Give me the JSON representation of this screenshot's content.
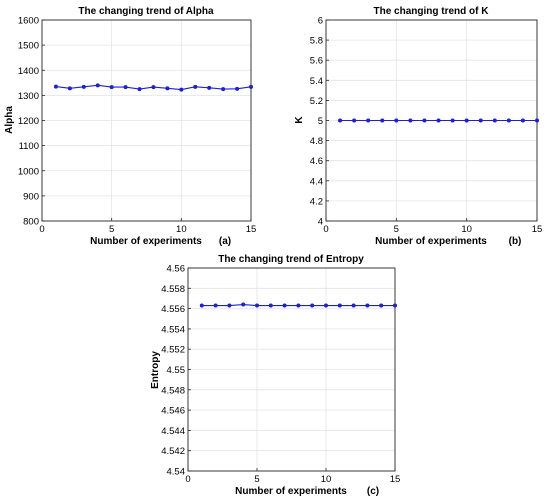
{
  "colors": {
    "series": "#1f1fd6",
    "grid": "#e4e4e4",
    "axis": "#262626"
  },
  "chart_data": [
    {
      "type": "line",
      "title": "The changing trend of Alpha",
      "xlabel": "Number of experiments",
      "ylabel": "Alpha",
      "panel_label": "(a)",
      "xlim": [
        0,
        15
      ],
      "ylim": [
        800,
        1600
      ],
      "xticks": [
        "0",
        "5",
        "10",
        "15"
      ],
      "yticks": [
        "800",
        "900",
        "1000",
        "1100",
        "1200",
        "1300",
        "1400",
        "1500",
        "1600"
      ],
      "grid": true,
      "series": [
        {
          "x": [
            1,
            2,
            3,
            4,
            5,
            6,
            7,
            8,
            9,
            10,
            11,
            12,
            13,
            14,
            15
          ],
          "values": [
            1335,
            1328,
            1334,
            1340,
            1333,
            1333,
            1325,
            1333,
            1328,
            1323,
            1334,
            1330,
            1325,
            1326,
            1334
          ]
        }
      ]
    },
    {
      "type": "line",
      "title": "The changing trend of K",
      "xlabel": "Number of experiments",
      "ylabel": "K",
      "panel_label": "(b)",
      "xlim": [
        0,
        15
      ],
      "ylim": [
        4,
        6
      ],
      "xticks": [
        "0",
        "5",
        "10",
        "15"
      ],
      "yticks": [
        "4",
        "4.2",
        "4.4",
        "4.6",
        "4.8",
        "5",
        "5.2",
        "5.4",
        "5.6",
        "5.8",
        "6"
      ],
      "grid": true,
      "series": [
        {
          "x": [
            1,
            2,
            3,
            4,
            5,
            6,
            7,
            8,
            9,
            10,
            11,
            12,
            13,
            14,
            15
          ],
          "values": [
            5,
            5,
            5,
            5,
            5,
            5,
            5,
            5,
            5,
            5,
            5,
            5,
            5,
            5,
            5
          ]
        }
      ]
    },
    {
      "type": "line",
      "title": "The changing trend of Entropy",
      "xlabel": "Number of experiments",
      "ylabel": "Entropy",
      "panel_label": "(c)",
      "xlim": [
        0,
        15
      ],
      "ylim": [
        4.54,
        4.56
      ],
      "xticks": [
        "0",
        "5",
        "10",
        "15"
      ],
      "yticks": [
        "4.54",
        "4.542",
        "4.544",
        "4.546",
        "4.548",
        "4.55",
        "4.552",
        "4.554",
        "4.556",
        "4.558",
        "4.56"
      ],
      "grid": true,
      "series": [
        {
          "x": [
            1,
            2,
            3,
            4,
            5,
            6,
            7,
            8,
            9,
            10,
            11,
            12,
            13,
            14,
            15
          ],
          "values": [
            4.5563,
            4.5563,
            4.5563,
            4.5564,
            4.5563,
            4.5563,
            4.5563,
            4.5563,
            4.5563,
            4.5563,
            4.5563,
            4.5563,
            4.5563,
            4.5563,
            4.5563
          ]
        }
      ]
    }
  ]
}
